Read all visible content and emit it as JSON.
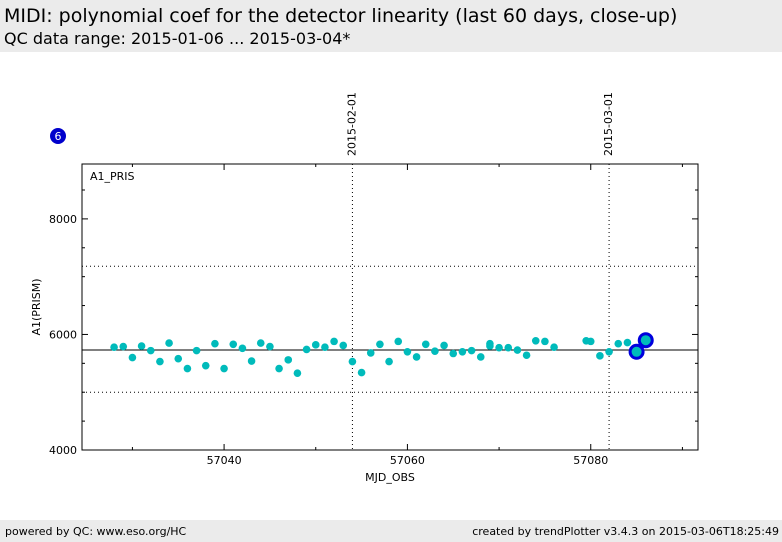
{
  "header": {
    "title": "MIDI: polynomial coef for the detector linearity (last 60 days, close-up)",
    "subtitle": "QC data range: 2015-01-06 ... 2015-03-04*"
  },
  "footer": {
    "left": "powered by QC: www.eso.org/HC",
    "right": "created by trendPlotter v3.4.3 on 2015-03-06T18:25:49"
  },
  "badge": {
    "label": "6",
    "color": "#0000cc"
  },
  "colors": {
    "points": "#00bbbb",
    "highlight_ring": "#0000dd",
    "highlight_fill": "#00bbbb",
    "axes": "#000000"
  },
  "chart_data": {
    "type": "scatter",
    "panel_label": "A1_PRIS",
    "xlabel": "MJD_OBS",
    "ylabel": "A1(PRISM)",
    "xlim": [
      57024.5,
      57091.7
    ],
    "ylim": [
      4000,
      8950
    ],
    "xticks": [
      57040,
      57060,
      57080
    ],
    "yticks": [
      4000,
      6000,
      8000
    ],
    "date_markers": [
      {
        "x": 57054.0,
        "label": "2015-02-01"
      },
      {
        "x": 57082.0,
        "label": "2015-03-01"
      }
    ],
    "mean_line": 5730,
    "sigma_lines": [
      5000,
      7180
    ],
    "grid": false,
    "points": [
      [
        57028,
        5780
      ],
      [
        57029,
        5790
      ],
      [
        57030,
        5600
      ],
      [
        57031,
        5800
      ],
      [
        57032,
        5720
      ],
      [
        57033,
        5530
      ],
      [
        57034,
        5850
      ],
      [
        57035,
        5580
      ],
      [
        57036,
        5410
      ],
      [
        57037,
        5720
      ],
      [
        57038,
        5460
      ],
      [
        57039,
        5840
      ],
      [
        57040,
        5410
      ],
      [
        57041,
        5830
      ],
      [
        57042,
        5760
      ],
      [
        57043,
        5540
      ],
      [
        57044,
        5850
      ],
      [
        57045,
        5790
      ],
      [
        57046,
        5410
      ],
      [
        57047,
        5560
      ],
      [
        57048,
        5330
      ],
      [
        57049,
        5740
      ],
      [
        57050,
        5820
      ],
      [
        57051,
        5780
      ],
      [
        57052,
        5880
      ],
      [
        57053,
        5810
      ],
      [
        57054,
        5530
      ],
      [
        57055,
        5340
      ],
      [
        57056,
        5680
      ],
      [
        57057,
        5830
      ],
      [
        57058,
        5530
      ],
      [
        57059,
        5880
      ],
      [
        57060,
        5700
      ],
      [
        57061,
        5610
      ],
      [
        57062,
        5830
      ],
      [
        57063,
        5710
      ],
      [
        57064,
        5810
      ],
      [
        57065,
        5670
      ],
      [
        57066,
        5700
      ],
      [
        57067,
        5720
      ],
      [
        57068,
        5610
      ],
      [
        57069,
        5840
      ],
      [
        57069,
        5800
      ],
      [
        57070,
        5770
      ],
      [
        57071,
        5770
      ],
      [
        57072,
        5730
      ],
      [
        57073,
        5640
      ],
      [
        57074,
        5890
      ],
      [
        57075,
        5880
      ],
      [
        57076,
        5780
      ],
      [
        57079.5,
        5890
      ],
      [
        57080,
        5880
      ],
      [
        57081,
        5630
      ],
      [
        57082,
        5700
      ],
      [
        57083,
        5840
      ],
      [
        57084,
        5860
      ],
      [
        57085,
        5700
      ],
      [
        57086,
        5900
      ]
    ],
    "highlighted": [
      [
        57085,
        5700
      ],
      [
        57086,
        5900
      ]
    ]
  }
}
